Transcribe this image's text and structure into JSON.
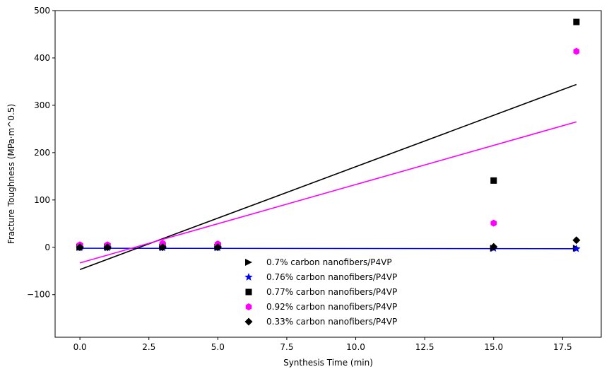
{
  "chart_data": {
    "type": "scatter",
    "xlabel": "Synthesis Time (min)",
    "ylabel": "Fracture Toughness (MPa·m^0.5)",
    "xlim": [
      -0.9,
      18.9
    ],
    "ylim": [
      -190,
      500
    ],
    "xticks": [
      0.0,
      2.5,
      5.0,
      7.5,
      10.0,
      12.5,
      15.0,
      17.5
    ],
    "xtick_labels": [
      "0.0",
      "2.5",
      "5.0",
      "7.5",
      "10.0",
      "12.5",
      "15.0",
      "17.5"
    ],
    "yticks": [
      -100,
      0,
      100,
      200,
      300,
      400,
      500
    ],
    "ytick_labels": [
      "−100",
      "0",
      "100",
      "200",
      "300",
      "400",
      "500"
    ],
    "grid": false,
    "legend_position": "bottom-center",
    "series": [
      {
        "name": "0.7% carbon nanofibers/P4VP",
        "marker": "triangle-right",
        "color": "#000000",
        "x": [
          0,
          1,
          3,
          5,
          15,
          18
        ],
        "y": [
          0,
          0,
          0,
          0,
          -2,
          -2
        ]
      },
      {
        "name": "0.76% carbon nanofibers/P4VP",
        "marker": "star",
        "color": "#0000ff",
        "x": [
          0,
          1,
          3,
          5,
          15,
          18
        ],
        "y": [
          -1,
          -1,
          -1,
          -1,
          -2,
          -3
        ],
        "fit": [
          [
            0,
            -2
          ],
          [
            18,
            -3
          ]
        ]
      },
      {
        "name": "0.77% carbon nanofibers/P4VP",
        "marker": "square",
        "color": "#000000",
        "x": [
          0,
          1,
          3,
          5,
          15,
          18
        ],
        "y": [
          2,
          2,
          3,
          3,
          141,
          476
        ],
        "fit": [
          [
            0,
            -47
          ],
          [
            18,
            344
          ]
        ]
      },
      {
        "name": "0.92% carbon nanofibers/P4VP",
        "marker": "hexagon",
        "color": "#ff00ff",
        "x": [
          0,
          1,
          3,
          5,
          15,
          18
        ],
        "y": [
          5,
          5,
          8,
          7,
          51,
          414
        ],
        "fit": [
          [
            0,
            -33
          ],
          [
            18,
            265
          ]
        ]
      },
      {
        "name": "0.33% carbon nanofibers/P4VP",
        "marker": "diamond",
        "color": "#000000",
        "x": [
          0,
          1,
          3,
          5,
          15,
          18
        ],
        "y": [
          0,
          0,
          0,
          0,
          1,
          15
        ]
      }
    ]
  }
}
